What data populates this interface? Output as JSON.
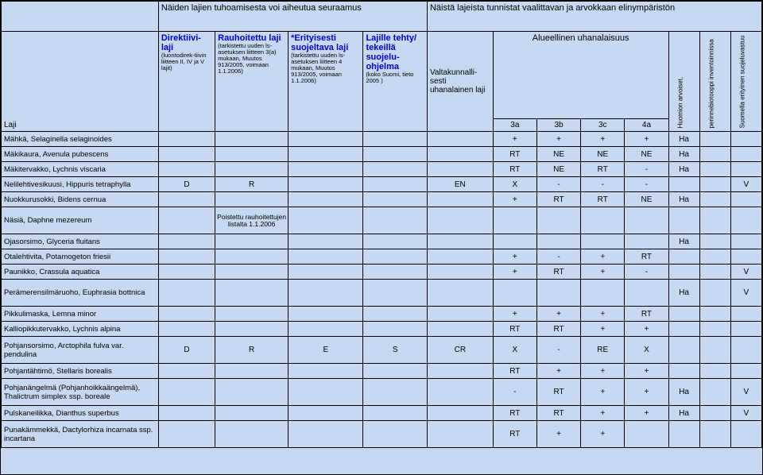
{
  "colors": {
    "bg": "#c6d9f1",
    "border": "#000000",
    "blue": "#0000cc"
  },
  "topHeaders": {
    "left": "Näiden lajien tuhoamisesta voi aiheutua seuraamus",
    "right": "Näistä lajeista tunnistat vaalittavan ja arvokkaan elinympäristön"
  },
  "columnHeaders": {
    "laji": "Laji",
    "direktiivi": {
      "bold": "Direktiivi-laji",
      "small": "(luontodirek-tiivin liitteen II, IV ja V  lajit)"
    },
    "rauhoitettu": {
      "bold": "Rauhoitettu laji",
      "small": "(tarkistettu uuden ls-asetuksen liitteen 3(a) mukaan, Muutos 913/2005, voimaan 1.1.2006)"
    },
    "erityisesti": {
      "bold": "*Erityisesti suojeltava laji",
      "small": "(tarkistettu uuden ls-asetuksen liitteen 4 mukaan, Muutos 913/2005, voimaan 1.1.2006)"
    },
    "lajille": {
      "bold": "Lajille tehty/ tekeillä suojelu-ohjelma",
      "small": "(koko Suomi,  tieto 2005 )"
    },
    "valtak": "Valtakunnalli-sesti uhanalainen laji",
    "alue": "Alueellinen uhanalaisuus",
    "sub": {
      "a": "3a",
      "b": "3b",
      "c": "3c",
      "d": "4a"
    },
    "huomion": "Huomion arvoiset,",
    "perinne": "perinnebiotooppi inventoinnissa",
    "suomella": "Suomella erityinen suojeluvastuu"
  },
  "rows": [
    {
      "sp": "Mähkä, Selaginella selaginoides",
      "c": [
        "",
        "",
        "",
        "",
        "",
        "+",
        "+",
        "+",
        "+",
        "Ha",
        "",
        ""
      ]
    },
    {
      "sp": "Mäkikaura, Avenula pubescens",
      "c": [
        "",
        "",
        "",
        "",
        "",
        "RT",
        "NE",
        "NE",
        "NE",
        "Ha",
        "",
        ""
      ]
    },
    {
      "sp": "Mäkitervakko, Lychnis viscaria",
      "c": [
        "",
        "",
        "",
        "",
        "",
        "RT",
        "NE",
        "RT",
        "-",
        "Ha",
        "",
        ""
      ]
    },
    {
      "sp": "Nelilehtivesikuusi, Hippuris tetraphylla",
      "c": [
        "D",
        "R",
        "",
        "",
        "EN",
        "X",
        "-",
        "-",
        "-",
        "",
        "",
        "V"
      ]
    },
    {
      "sp": "Nuokkurusokki, Bidens cernua",
      "c": [
        "",
        "",
        "",
        "",
        "",
        "+",
        "RT",
        "RT",
        "NE",
        "Ha",
        "",
        ""
      ]
    },
    {
      "sp": "Näsiä, Daphne mezereum",
      "c": [
        "",
        "Poistettu rauhoitettujen listalta 1.1.2006",
        "",
        "",
        "",
        "",
        "",
        "",
        "",
        "",
        "",
        ""
      ],
      "tall": true
    },
    {
      "sp": "Ojasorsimo, Glyceria fluitans",
      "c": [
        "",
        "",
        "",
        "",
        "",
        "",
        "",
        "",
        "",
        "Ha",
        "",
        ""
      ]
    },
    {
      "sp": "Otalehtivita, Potamogeton friesii",
      "c": [
        "",
        "",
        "",
        "",
        "",
        "+",
        "-",
        "+",
        "RT",
        "",
        "",
        ""
      ]
    },
    {
      "sp": "Paunikko, Crassula aquatica",
      "c": [
        "",
        "",
        "",
        "",
        "",
        "+",
        "RT",
        "+",
        "-",
        "",
        "",
        "V"
      ]
    },
    {
      "sp": "Perämerensilmäruoho, Euphrasia bottnica",
      "c": [
        "",
        "",
        "",
        "",
        "",
        "",
        "",
        "",
        "",
        "Ha",
        "",
        "V"
      ],
      "tall": true
    },
    {
      "sp": "Pikkulimaska, Lemna minor",
      "c": [
        "",
        "",
        "",
        "",
        "",
        "+",
        "+",
        "+",
        "RT",
        "",
        "",
        ""
      ]
    },
    {
      "sp": "Kalliopikkutervakko, Lychnis alpina",
      "c": [
        "",
        "",
        "",
        "",
        "",
        "RT",
        "RT",
        "+",
        "+",
        "",
        "",
        ""
      ]
    },
    {
      "sp": "Pohjansorsimo, Arctophila fulva var. pendulina",
      "c": [
        "D",
        "R",
        "E",
        "S",
        "CR",
        "X",
        "-",
        "RE",
        "X",
        "",
        "",
        ""
      ],
      "tall": true
    },
    {
      "sp": "Pohjantähtimö, Stellaris borealis",
      "c": [
        "",
        "",
        "",
        "",
        "",
        "RT",
        "+",
        "+",
        "+",
        "",
        "",
        ""
      ]
    },
    {
      "sp": "Pohjanängelmä (Pohjanhoikkaängelmä), Thalictrum simplex ssp. boreale",
      "c": [
        "",
        "",
        "",
        "",
        "",
        "-",
        "RT",
        "+",
        "+",
        "Ha",
        "",
        "V"
      ],
      "tall": true
    },
    {
      "sp": "Pulskaneilikka, Dianthus superbus",
      "c": [
        "",
        "",
        "",
        "",
        "",
        "RT",
        "RT",
        "+",
        "+",
        "Ha",
        "",
        "V"
      ]
    },
    {
      "sp": "Punakämmekkä, Dactylorhiza incarnata ssp. incartana",
      "c": [
        "",
        "",
        "",
        "",
        "",
        "RT",
        "+",
        "+",
        "",
        "",
        "",
        ""
      ],
      "tall": true
    }
  ]
}
